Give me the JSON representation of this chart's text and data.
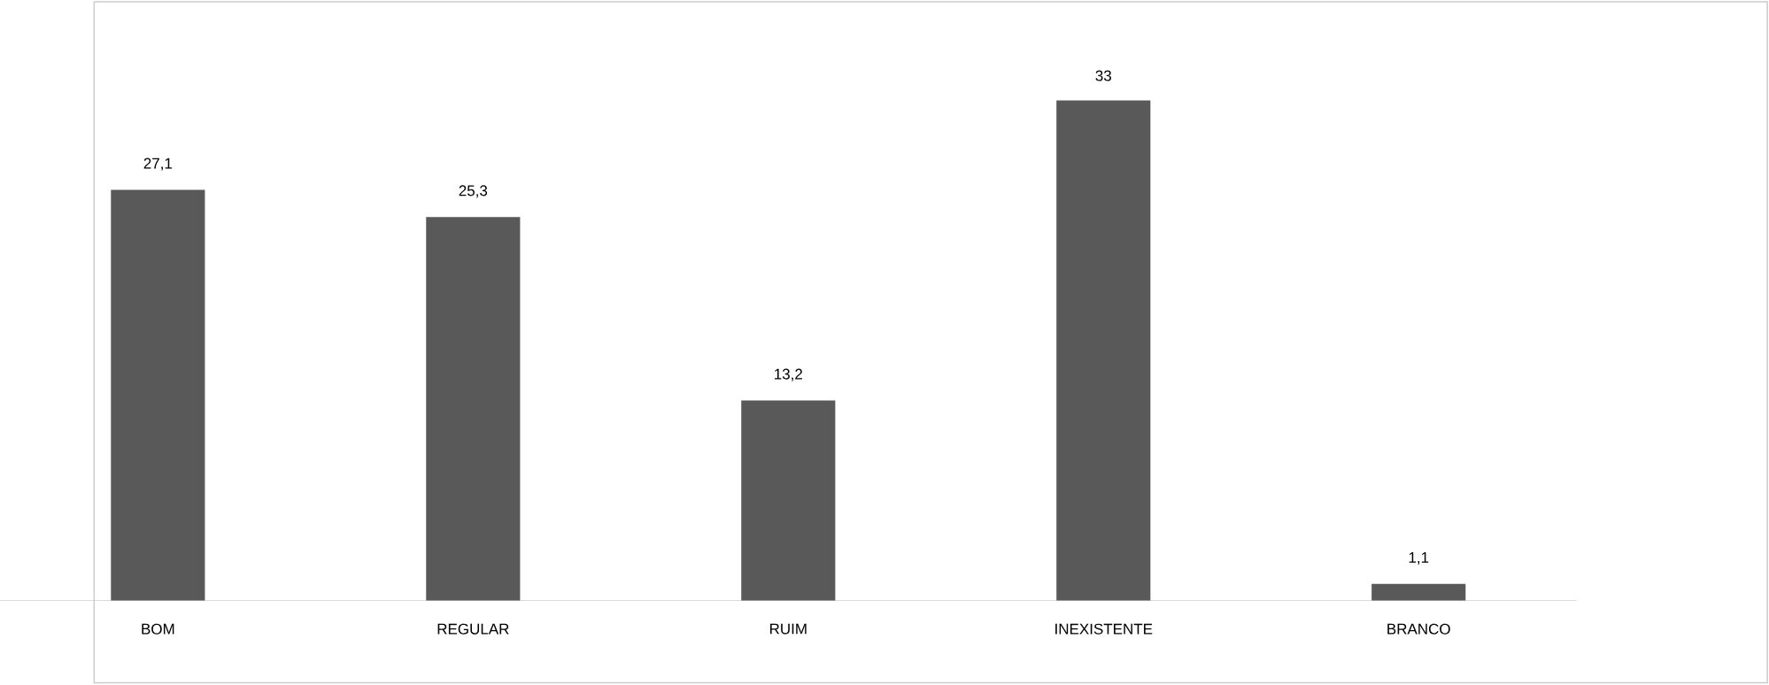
{
  "chart_data": {
    "type": "bar",
    "categories": [
      "BOM",
      "REGULAR",
      "RUIM",
      "INEXISTENTE",
      "BRANCO"
    ],
    "values": [
      27.1,
      25.3,
      13.2,
      33,
      1.1
    ],
    "value_labels": [
      "27,1",
      "25,3",
      "13,2",
      "33",
      "1,1"
    ],
    "color": "#595959"
  }
}
